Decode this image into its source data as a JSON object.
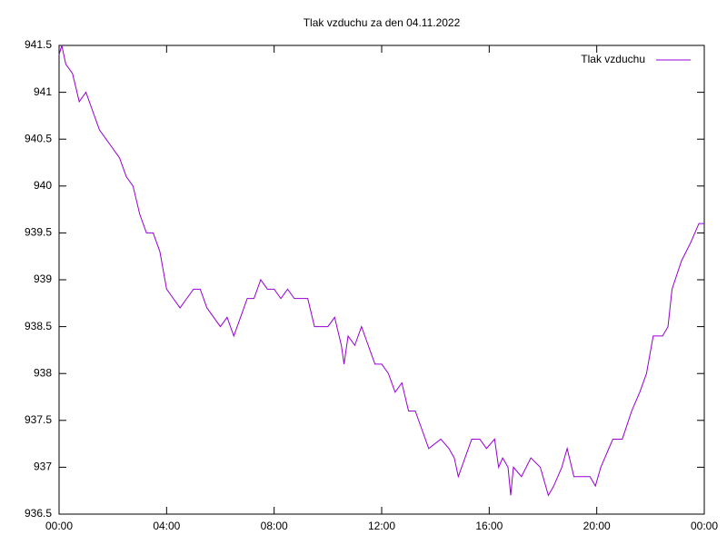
{
  "chart_data": {
    "type": "line",
    "title": "Tlak vzduchu za den 04.11.2022",
    "x": [
      0,
      0.1,
      0.25,
      0.5,
      0.75,
      1.0,
      1.25,
      1.5,
      1.75,
      2.0,
      2.25,
      2.5,
      2.75,
      3.0,
      3.25,
      3.5,
      3.75,
      4.0,
      4.25,
      4.5,
      4.75,
      5.0,
      5.25,
      5.5,
      5.75,
      6.0,
      6.25,
      6.5,
      6.75,
      7.0,
      7.25,
      7.5,
      7.75,
      8.0,
      8.25,
      8.5,
      8.75,
      9.0,
      9.25,
      9.5,
      9.75,
      10.0,
      10.25,
      10.5,
      10.6,
      10.75,
      11.0,
      11.25,
      11.5,
      11.75,
      12.0,
      12.25,
      12.5,
      12.75,
      13.0,
      13.25,
      13.5,
      13.75,
      14.2,
      14.5,
      14.7,
      14.85,
      15.1,
      15.35,
      15.65,
      15.9,
      16.2,
      16.35,
      16.5,
      16.7,
      16.8,
      16.9,
      17.2,
      17.55,
      17.9,
      18.2,
      18.4,
      18.7,
      18.9,
      19.15,
      19.75,
      19.95,
      20.15,
      20.45,
      20.6,
      20.95,
      21.3,
      21.6,
      21.85,
      22.1,
      22.45,
      22.65,
      22.8,
      23.15,
      23.5,
      23.8,
      24
    ],
    "series": [
      {
        "name": "Tlak vzduchu",
        "color": "#9400d3",
        "values": [
          941.4,
          941.5,
          941.3,
          941.2,
          940.9,
          941.0,
          940.8,
          940.6,
          940.5,
          940.4,
          940.3,
          940.1,
          940.0,
          939.7,
          939.5,
          939.5,
          939.3,
          938.9,
          938.8,
          938.7,
          938.8,
          938.9,
          938.9,
          938.7,
          938.6,
          938.5,
          938.6,
          938.4,
          938.6,
          938.8,
          938.8,
          939.0,
          938.9,
          938.9,
          938.8,
          938.9,
          938.8,
          938.8,
          938.8,
          938.5,
          938.5,
          938.5,
          938.6,
          938.3,
          938.1,
          938.4,
          938.3,
          938.5,
          938.3,
          938.1,
          938.1,
          938.0,
          937.8,
          937.9,
          937.6,
          937.6,
          937.4,
          937.2,
          937.3,
          937.2,
          937.1,
          936.9,
          937.1,
          937.3,
          937.3,
          937.2,
          937.3,
          937.0,
          937.1,
          937.0,
          936.7,
          937.0,
          936.9,
          937.1,
          937.0,
          936.7,
          936.8,
          937.0,
          937.2,
          936.9,
          936.9,
          936.8,
          937.0,
          937.2,
          937.3,
          937.3,
          937.6,
          937.8,
          938.0,
          938.4,
          938.4,
          938.5,
          938.9,
          939.2,
          939.4,
          939.6,
          939.6
        ]
      }
    ],
    "xlim": [
      0,
      24
    ],
    "xticks": [
      {
        "value": 0,
        "label": "00:00"
      },
      {
        "value": 4,
        "label": "04:00"
      },
      {
        "value": 8,
        "label": "08:00"
      },
      {
        "value": 12,
        "label": "12:00"
      },
      {
        "value": 16,
        "label": "16:00"
      },
      {
        "value": 20,
        "label": "20:00"
      },
      {
        "value": 24,
        "label": "00:00"
      }
    ],
    "ylim": [
      936.5,
      941.5
    ],
    "yticks": [
      936.5,
      937,
      937.5,
      938,
      938.5,
      939,
      939.5,
      940,
      940.5,
      941,
      941.5
    ],
    "legend": "top-right"
  }
}
